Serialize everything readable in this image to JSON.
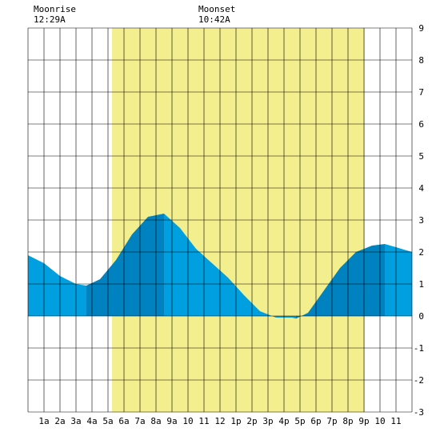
{
  "header": {
    "moonrise_label": "Moonrise",
    "moonrise_time": "12:29A",
    "moonset_label": "Moonset",
    "moonset_time": "10:42A"
  },
  "colors": {
    "daylight": "#f3ee8e",
    "tide_light": "#00a0e0",
    "tide_dark": "#0082c0",
    "grid": "#000000",
    "background": "#ffffff"
  },
  "chart_data": {
    "type": "area",
    "title": "",
    "xlabel": "",
    "ylabel": "",
    "x_range": [
      0,
      24
    ],
    "ylim": [
      -3,
      9
    ],
    "y_ticks": [
      "-3",
      "-2",
      "-1",
      "0",
      "1",
      "2",
      "3",
      "4",
      "5",
      "6",
      "7",
      "8",
      "9"
    ],
    "x_tick_labels": [
      "1a",
      "2a",
      "3a",
      "4a",
      "5a",
      "6a",
      "7a",
      "8a",
      "9a",
      "10",
      "11",
      "12",
      "1p",
      "2p",
      "3p",
      "4p",
      "5p",
      "6p",
      "7p",
      "8p",
      "9p",
      "10",
      "11"
    ],
    "x_tick_hours": [
      1,
      2,
      3,
      4,
      5,
      6,
      7,
      8,
      9,
      10,
      11,
      12,
      13,
      14,
      15,
      16,
      17,
      18,
      19,
      20,
      21,
      22,
      23
    ],
    "daylight_hours": [
      5.25,
      21.05
    ],
    "series": [
      {
        "values_hour": [
          0,
          1,
          2,
          3,
          3.65,
          4.5,
          5.5,
          6.5,
          7.5,
          8.5,
          9.5,
          10.5,
          11.5,
          12.5,
          13.5,
          14.5,
          15.5,
          16.5,
          16.75,
          17.5,
          18.5,
          19.5,
          20.5,
          21.5,
          22.3,
          23,
          24
        ],
        "values_height": [
          1.9,
          1.65,
          1.25,
          1.0,
          0.95,
          1.15,
          1.75,
          2.55,
          3.1,
          3.2,
          2.75,
          2.1,
          1.65,
          1.2,
          0.65,
          0.15,
          -0.05,
          -0.05,
          -0.08,
          0.1,
          0.8,
          1.5,
          2.0,
          2.2,
          2.25,
          2.15,
          2.0
        ]
      }
    ],
    "extremes_hour": [
      0,
      3.65,
      8.5,
      16.75,
      22.3,
      24
    ],
    "grid": true
  }
}
